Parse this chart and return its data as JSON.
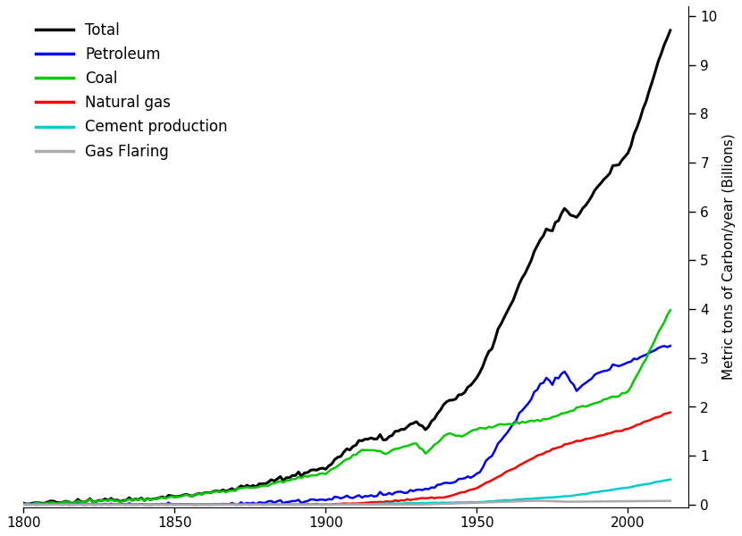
{
  "ylabel": "Metric tons of Carbon/year (Billions)",
  "xlim": [
    1800,
    2020
  ],
  "ylim": [
    -0.05,
    10.2
  ],
  "yticks": [
    0,
    1,
    2,
    3,
    4,
    5,
    6,
    7,
    8,
    9,
    10
  ],
  "xticks": [
    1800,
    1850,
    1900,
    1950,
    2000
  ],
  "legend_entries": [
    "Total",
    "Petroleum",
    "Coal",
    "Natural gas",
    "Cement production",
    "Gas Flaring"
  ],
  "legend_colors": [
    "#000000",
    "#0000ff",
    "#00cc00",
    "#ff0000",
    "#00cccc",
    "#aaaaaa"
  ],
  "line_widths": [
    2.2,
    1.8,
    1.8,
    1.8,
    1.8,
    1.8
  ],
  "figsize": [
    8.3,
    6.0
  ],
  "dpi": 100
}
